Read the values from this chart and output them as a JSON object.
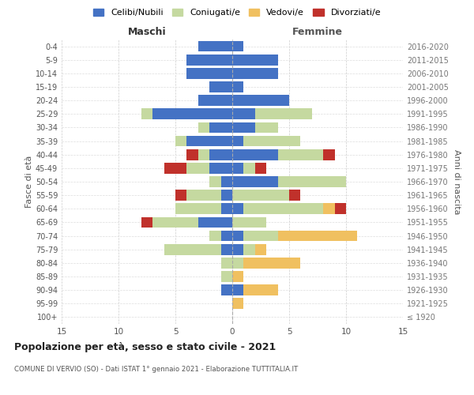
{
  "age_groups": [
    "100+",
    "95-99",
    "90-94",
    "85-89",
    "80-84",
    "75-79",
    "70-74",
    "65-69",
    "60-64",
    "55-59",
    "50-54",
    "45-49",
    "40-44",
    "35-39",
    "30-34",
    "25-29",
    "20-24",
    "15-19",
    "10-14",
    "5-9",
    "0-4"
  ],
  "birth_years": [
    "≤ 1920",
    "1921-1925",
    "1926-1930",
    "1931-1935",
    "1936-1940",
    "1941-1945",
    "1946-1950",
    "1951-1955",
    "1956-1960",
    "1961-1965",
    "1966-1970",
    "1971-1975",
    "1976-1980",
    "1981-1985",
    "1986-1990",
    "1991-1995",
    "1996-2000",
    "2001-2005",
    "2006-2010",
    "2011-2015",
    "2016-2020"
  ],
  "male": {
    "celibi": [
      0,
      0,
      1,
      0,
      0,
      1,
      1,
      3,
      1,
      1,
      1,
      2,
      2,
      4,
      2,
      7,
      3,
      2,
      4,
      4,
      3
    ],
    "coniugati": [
      0,
      0,
      0,
      1,
      1,
      5,
      1,
      4,
      4,
      3,
      1,
      2,
      1,
      1,
      1,
      1,
      0,
      0,
      0,
      0,
      0
    ],
    "vedovi": [
      0,
      0,
      0,
      0,
      0,
      0,
      0,
      0,
      0,
      0,
      0,
      0,
      0,
      0,
      0,
      0,
      0,
      0,
      0,
      0,
      0
    ],
    "divorziati": [
      0,
      0,
      0,
      0,
      0,
      0,
      0,
      1,
      0,
      1,
      0,
      2,
      1,
      0,
      0,
      0,
      0,
      0,
      0,
      0,
      0
    ]
  },
  "female": {
    "nubili": [
      0,
      0,
      1,
      0,
      0,
      1,
      1,
      0,
      1,
      0,
      4,
      1,
      4,
      1,
      2,
      2,
      5,
      1,
      4,
      4,
      1
    ],
    "coniugate": [
      0,
      0,
      0,
      0,
      1,
      1,
      3,
      3,
      7,
      5,
      6,
      1,
      4,
      5,
      2,
      5,
      0,
      0,
      0,
      0,
      0
    ],
    "vedove": [
      0,
      1,
      3,
      1,
      5,
      1,
      7,
      0,
      1,
      0,
      0,
      0,
      0,
      0,
      0,
      0,
      0,
      0,
      0,
      0,
      0
    ],
    "divorziate": [
      0,
      0,
      0,
      0,
      0,
      0,
      0,
      0,
      1,
      1,
      0,
      1,
      1,
      0,
      0,
      0,
      0,
      0,
      0,
      0,
      0
    ]
  },
  "colors": {
    "celibi": "#4472c4",
    "coniugati": "#c5d9a0",
    "vedovi": "#f0c060",
    "divorziati": "#c0312b"
  },
  "xlim": 15,
  "title": "Popolazione per età, sesso e stato civile - 2021",
  "subtitle": "COMUNE DI VERVIO (SO) - Dati ISTAT 1° gennaio 2021 - Elaborazione TUTTITALIA.IT",
  "ylabel_left": "Fasce di età",
  "ylabel_right": "Anni di nascita",
  "xlabel_left": "Maschi",
  "xlabel_right": "Femmine",
  "legend_labels": [
    "Celibi/Nubili",
    "Coniugati/e",
    "Vedovi/e",
    "Divorziati/e"
  ],
  "bg_color": "#ffffff",
  "bar_height": 0.8
}
